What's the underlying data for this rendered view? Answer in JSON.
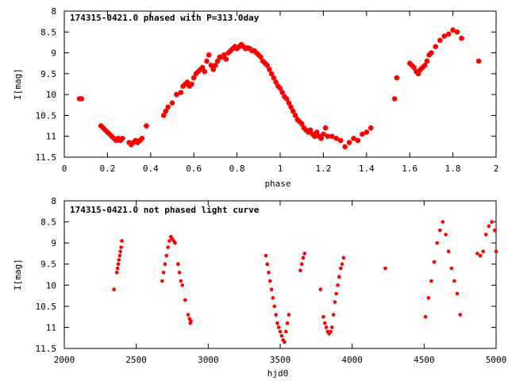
{
  "colors": {
    "points": "#ff0000",
    "frame": "#000000",
    "background": "#ffffff"
  },
  "chart_data": [
    {
      "type": "scatter",
      "title": "174315-0421.0 phased with P=313.0day",
      "xlabel": "phase",
      "ylabel": "I[mag]",
      "xlim": [
        0,
        2
      ],
      "ylim": [
        8,
        11.5
      ],
      "y_inverted": true,
      "grid": false,
      "legend": "none",
      "marker": "filled circle",
      "xticks": [
        "0",
        "0.2",
        "0.4",
        "0.6",
        "0.8",
        "1",
        "1.2",
        "1.4",
        "1.6",
        "1.8",
        "2"
      ],
      "yticks": [
        "8",
        "8.5",
        "9",
        "9.5",
        "10",
        "10.5",
        "11",
        "11.5"
      ],
      "x": [
        0.07,
        0.08,
        0.17,
        0.18,
        0.19,
        0.2,
        0.21,
        0.22,
        0.23,
        0.24,
        0.25,
        0.26,
        0.27,
        0.3,
        0.31,
        0.32,
        0.33,
        0.34,
        0.35,
        0.36,
        0.38,
        0.46,
        0.47,
        0.48,
        0.5,
        0.52,
        0.54,
        0.55,
        0.56,
        0.57,
        0.58,
        0.59,
        0.6,
        0.61,
        0.62,
        0.63,
        0.64,
        0.65,
        0.66,
        0.67,
        0.68,
        0.69,
        0.7,
        0.71,
        0.72,
        0.73,
        0.74,
        0.75,
        0.76,
        0.77,
        0.78,
        0.79,
        0.8,
        0.81,
        0.82,
        0.83,
        0.84,
        0.85,
        0.86,
        0.87,
        0.88,
        0.89,
        0.9,
        0.91,
        0.92,
        0.93,
        0.94,
        0.95,
        0.96,
        0.97,
        0.98,
        0.99,
        1.0,
        1.01,
        1.02,
        1.03,
        1.04,
        1.05,
        1.06,
        1.07,
        1.08,
        1.09,
        1.1,
        1.11,
        1.12,
        1.13,
        1.14,
        1.15,
        1.16,
        1.17,
        1.18,
        1.19,
        1.2,
        1.21,
        1.22,
        1.24,
        1.26,
        1.28,
        1.3,
        1.32,
        1.34,
        1.36,
        1.38,
        1.4,
        1.42,
        1.53,
        1.54,
        1.6,
        1.61,
        1.62,
        1.63,
        1.64,
        1.65,
        1.66,
        1.67,
        1.68,
        1.69,
        1.7,
        1.72,
        1.74,
        1.76,
        1.78,
        1.8,
        1.82,
        1.84,
        1.92
      ],
      "y": [
        10.1,
        10.1,
        10.75,
        10.8,
        10.85,
        10.9,
        10.95,
        11.0,
        11.05,
        11.1,
        11.05,
        11.1,
        11.05,
        11.15,
        11.2,
        11.15,
        11.1,
        11.15,
        11.1,
        11.05,
        10.75,
        10.5,
        10.4,
        10.3,
        10.2,
        10.0,
        9.95,
        9.8,
        9.75,
        9.7,
        9.8,
        9.75,
        9.6,
        9.5,
        9.45,
        9.4,
        9.35,
        9.45,
        9.2,
        9.05,
        9.3,
        9.4,
        9.3,
        9.2,
        9.1,
        9.1,
        9.05,
        9.15,
        9.0,
        8.95,
        8.9,
        8.85,
        8.9,
        8.85,
        8.8,
        8.85,
        8.9,
        8.88,
        8.9,
        8.95,
        8.95,
        9.0,
        9.05,
        9.1,
        9.2,
        9.25,
        9.3,
        9.4,
        9.5,
        9.6,
        9.7,
        9.8,
        9.85,
        9.95,
        10.05,
        10.1,
        10.2,
        10.3,
        10.4,
        10.5,
        10.6,
        10.65,
        10.7,
        10.8,
        10.85,
        10.9,
        10.85,
        10.95,
        11.0,
        10.9,
        11.0,
        11.05,
        10.95,
        10.8,
        11.0,
        11.0,
        11.05,
        11.1,
        11.25,
        11.15,
        11.05,
        11.1,
        10.95,
        10.9,
        10.8,
        10.1,
        9.6,
        9.25,
        9.3,
        9.35,
        9.45,
        9.5,
        9.4,
        9.35,
        9.3,
        9.2,
        9.05,
        9.0,
        8.85,
        8.7,
        8.6,
        8.55,
        8.45,
        8.5,
        8.65,
        9.2
      ]
    },
    {
      "type": "scatter",
      "title": "174315-0421.0 not phased light curve",
      "xlabel": "hjd0",
      "ylabel": "I[mag]",
      "xlim": [
        2000,
        5000
      ],
      "ylim": [
        8,
        11.5
      ],
      "y_inverted": true,
      "grid": false,
      "legend": "none",
      "marker": "filled circle",
      "xticks": [
        "2000",
        "2500",
        "3000",
        "3500",
        "4000",
        "4500",
        "5000"
      ],
      "yticks": [
        "8",
        "8.5",
        "9",
        "9.5",
        "10",
        "10.5",
        "11",
        "11.5"
      ],
      "x": [
        2345,
        2365,
        2370,
        2375,
        2380,
        2385,
        2390,
        2395,
        2400,
        2680,
        2690,
        2700,
        2710,
        2720,
        2730,
        2740,
        2750,
        2760,
        2770,
        2790,
        2800,
        2810,
        2820,
        2840,
        2860,
        2870,
        2875,
        2880,
        3400,
        3410,
        3420,
        3430,
        3440,
        3450,
        3460,
        3470,
        3480,
        3490,
        3500,
        3510,
        3520,
        3530,
        3540,
        3550,
        3560,
        3640,
        3650,
        3660,
        3670,
        3780,
        3800,
        3810,
        3820,
        3830,
        3840,
        3850,
        3860,
        3870,
        3880,
        3890,
        3900,
        3910,
        3920,
        3930,
        3940,
        4230,
        4510,
        4530,
        4550,
        4570,
        4590,
        4610,
        4630,
        4650,
        4670,
        4690,
        4710,
        4730,
        4750,
        4870,
        4890,
        4910,
        4930,
        4950,
        4970,
        4990,
        5000
      ],
      "y": [
        10.1,
        9.7,
        9.6,
        9.5,
        9.4,
        9.3,
        9.2,
        9.1,
        8.95,
        9.9,
        9.7,
        9.5,
        9.3,
        9.1,
        8.95,
        8.85,
        8.9,
        8.95,
        9.0,
        9.5,
        9.7,
        9.9,
        10.0,
        10.35,
        10.7,
        10.8,
        10.9,
        10.85,
        9.3,
        9.5,
        9.7,
        9.9,
        10.1,
        10.3,
        10.5,
        10.7,
        10.9,
        11.0,
        11.1,
        11.2,
        11.3,
        11.35,
        11.1,
        10.9,
        10.7,
        9.65,
        9.5,
        9.35,
        9.25,
        10.1,
        10.75,
        10.9,
        11.0,
        11.1,
        11.15,
        11.1,
        11.0,
        10.7,
        10.4,
        10.2,
        10.0,
        9.8,
        9.6,
        9.5,
        9.35,
        9.6,
        10.75,
        10.3,
        9.9,
        9.45,
        9.0,
        8.7,
        8.5,
        8.8,
        9.2,
        9.6,
        9.9,
        10.2,
        10.7,
        9.25,
        9.3,
        9.2,
        8.8,
        8.6,
        8.5,
        8.7,
        9.2
      ]
    }
  ]
}
